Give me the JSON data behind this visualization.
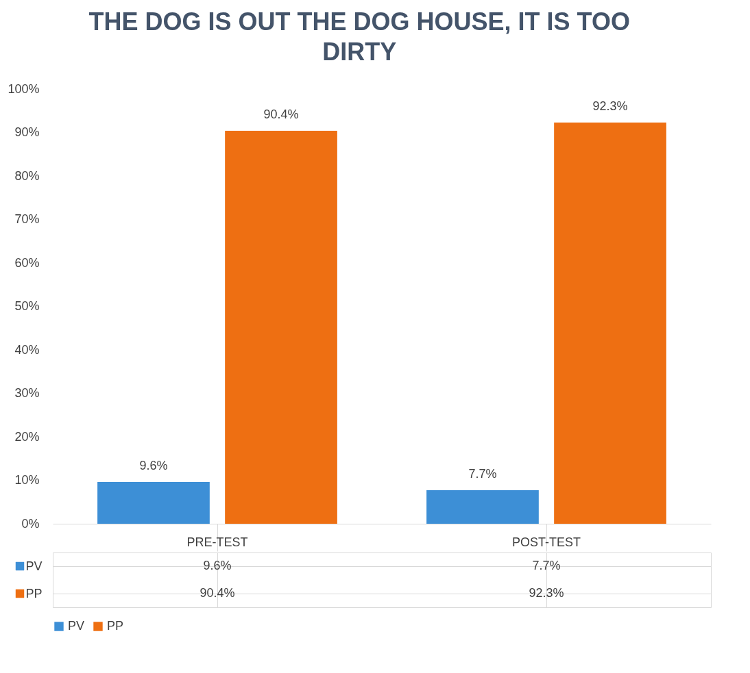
{
  "chart_data": {
    "type": "bar",
    "title": "THE DOG IS OUT THE DOG HOUSE, IT IS TOO DIRTY",
    "categories": [
      "PRE-TEST",
      "POST-TEST"
    ],
    "series": [
      {
        "name": "PV",
        "color": "#3d8fd6",
        "values": [
          9.6,
          7.7
        ]
      },
      {
        "name": "PP",
        "color": "#ee6f12",
        "values": [
          90.4,
          92.3
        ]
      }
    ],
    "ylim": [
      0,
      100
    ],
    "yticks": [
      {
        "value": 0,
        "label": "0%"
      },
      {
        "value": 10,
        "label": "10%"
      },
      {
        "value": 20,
        "label": "20%"
      },
      {
        "value": 30,
        "label": "30%"
      },
      {
        "value": 40,
        "label": "40%"
      },
      {
        "value": 50,
        "label": "50%"
      },
      {
        "value": 60,
        "label": "60%"
      },
      {
        "value": 70,
        "label": "70%"
      },
      {
        "value": 80,
        "label": "80%"
      },
      {
        "value": 90,
        "label": "90%"
      },
      {
        "value": 100,
        "label": "100%"
      }
    ],
    "value_labels": [
      [
        "9.6%",
        "7.7%"
      ],
      [
        "90.4%",
        "92.3%"
      ]
    ],
    "grid": false,
    "legend": "bottom"
  }
}
